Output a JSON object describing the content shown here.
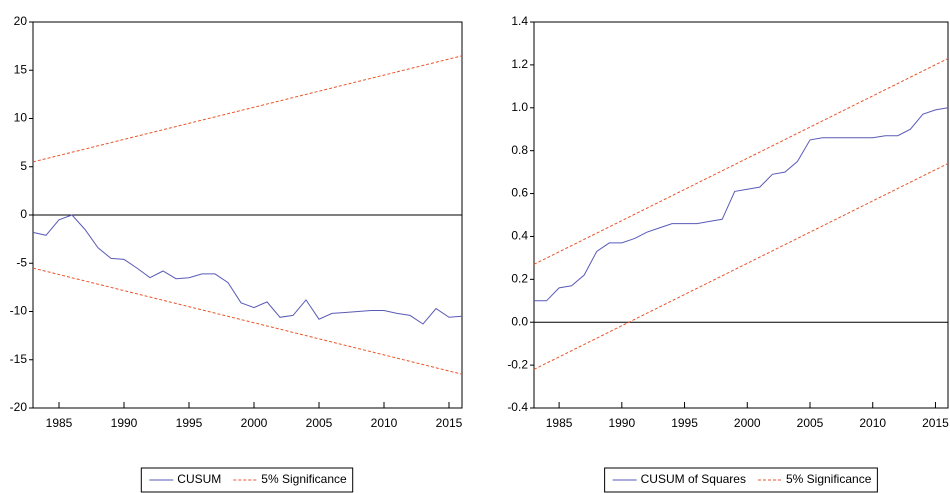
{
  "chart_data": [
    {
      "type": "line",
      "x": [
        1983,
        1984,
        1985,
        1986,
        1987,
        1988,
        1989,
        1990,
        1991,
        1992,
        1993,
        1994,
        1995,
        1996,
        1997,
        1998,
        1999,
        2000,
        2001,
        2002,
        2003,
        2004,
        2005,
        2006,
        2007,
        2008,
        2009,
        2010,
        2011,
        2012,
        2013,
        2014,
        2015,
        2016
      ],
      "series": [
        {
          "name": "CUSUM",
          "color": "#5a5ab8",
          "style": "solid",
          "values": [
            -1.8,
            -2.1,
            -0.5,
            0.0,
            -1.5,
            -3.4,
            -4.5,
            -4.6,
            -5.5,
            -6.5,
            -5.8,
            -6.6,
            -6.5,
            -6.1,
            -6.1,
            -7.0,
            -9.1,
            -9.6,
            -9.0,
            -10.6,
            -10.4,
            -8.8,
            -10.8,
            -10.2,
            -10.1,
            -10.0,
            -9.9,
            -9.9,
            -10.2,
            -10.4,
            -11.3,
            -9.7,
            -10.6,
            -10.5
          ]
        },
        {
          "name": "5% Significance",
          "color": "#e8552a",
          "style": "dashed",
          "x": [
            1983,
            2016
          ],
          "upper": [
            5.5,
            16.5
          ],
          "lower": [
            -5.5,
            -16.5
          ]
        }
      ],
      "xlim": [
        1983,
        2016
      ],
      "xticks": [
        1985,
        1990,
        1995,
        2000,
        2005,
        2010,
        2015
      ],
      "ylim": [
        -20,
        20
      ],
      "yticks": [
        -20,
        -15,
        -10,
        -5,
        0,
        5,
        10,
        15,
        20
      ],
      "reference_line": 0
    },
    {
      "type": "line",
      "x": [
        1983,
        1984,
        1985,
        1986,
        1987,
        1988,
        1989,
        1990,
        1991,
        1992,
        1993,
        1994,
        1995,
        1996,
        1997,
        1998,
        1999,
        2000,
        2001,
        2002,
        2003,
        2004,
        2005,
        2006,
        2007,
        2008,
        2009,
        2010,
        2011,
        2012,
        2013,
        2014,
        2015,
        2016
      ],
      "series": [
        {
          "name": "CUSUM of Squares",
          "color": "#5a5ab8",
          "style": "solid",
          "values": [
            0.1,
            0.1,
            0.16,
            0.17,
            0.22,
            0.33,
            0.37,
            0.37,
            0.39,
            0.42,
            0.44,
            0.46,
            0.46,
            0.46,
            0.47,
            0.48,
            0.61,
            0.62,
            0.63,
            0.69,
            0.7,
            0.75,
            0.85,
            0.86,
            0.86,
            0.86,
            0.86,
            0.86,
            0.87,
            0.87,
            0.9,
            0.97,
            0.99,
            1.0
          ]
        },
        {
          "name": "5% Significance",
          "color": "#e8552a",
          "style": "dashed",
          "x": [
            1983,
            2016
          ],
          "upper": [
            0.27,
            1.23
          ],
          "lower": [
            -0.22,
            0.74
          ]
        }
      ],
      "xlim": [
        1983,
        2016
      ],
      "xticks": [
        1985,
        1990,
        1995,
        2000,
        2005,
        2010,
        2015
      ],
      "ylim": [
        -0.4,
        1.4
      ],
      "yticks": [
        -0.4,
        -0.2,
        {
          "value": 0,
          "label": "0.0"
        },
        0.2,
        0.4,
        0.6,
        0.8,
        {
          "value": 1,
          "label": "1.0"
        },
        1.2,
        1.4
      ],
      "reference_line": 0
    }
  ]
}
